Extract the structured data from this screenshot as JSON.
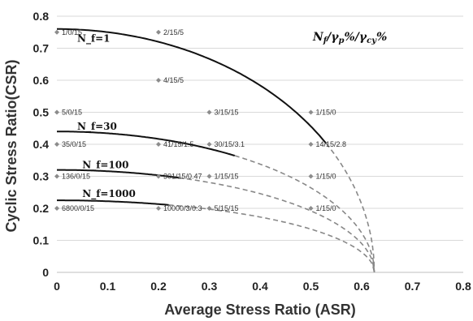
{
  "chart_data": {
    "type": "scatter",
    "title": "",
    "xlabel": "Average Stress Ratio (ASR)",
    "ylabel": "Cyclic Stress Ratio(CSR)",
    "xlim": [
      0,
      0.8
    ],
    "ylim": [
      0,
      0.8
    ],
    "x_ticks": [
      "0",
      "0.1",
      "0.2",
      "0.3",
      "0.4",
      "0.5",
      "0.6",
      "0.7",
      "0.8"
    ],
    "y_ticks": [
      "0",
      "0.1",
      "0.2",
      "0.3",
      "0.4",
      "0.5",
      "0.6",
      "0.7",
      "0.8"
    ],
    "grid": "horizontal",
    "legend_text": "N_f/γ_p%/γ_cy%",
    "points": [
      {
        "x": 0.0,
        "y": 0.75,
        "label": "1/0/15"
      },
      {
        "x": 0.2,
        "y": 0.75,
        "label": "2/15/5"
      },
      {
        "x": 0.2,
        "y": 0.6,
        "label": "4/15/5"
      },
      {
        "x": 0.0,
        "y": 0.5,
        "label": "5/0/15"
      },
      {
        "x": 0.3,
        "y": 0.5,
        "label": "3/15/15"
      },
      {
        "x": 0.5,
        "y": 0.5,
        "label": "1/15/0"
      },
      {
        "x": 0.0,
        "y": 0.4,
        "label": "35/0/15"
      },
      {
        "x": 0.2,
        "y": 0.4,
        "label": "41/15/1.5"
      },
      {
        "x": 0.3,
        "y": 0.4,
        "label": "30/15/3.1"
      },
      {
        "x": 0.5,
        "y": 0.4,
        "label": "14/15/2.8"
      },
      {
        "x": 0.0,
        "y": 0.3,
        "label": "136/0/15"
      },
      {
        "x": 0.2,
        "y": 0.3,
        "label": "301/15/0.47"
      },
      {
        "x": 0.3,
        "y": 0.3,
        "label": "1/15/15"
      },
      {
        "x": 0.5,
        "y": 0.3,
        "label": "1/15/0"
      },
      {
        "x": 0.0,
        "y": 0.2,
        "label": "6800/0/15"
      },
      {
        "x": 0.2,
        "y": 0.2,
        "label": "10000/3/0.3"
      },
      {
        "x": 0.3,
        "y": 0.2,
        "label": "5/15/15"
      },
      {
        "x": 0.5,
        "y": 0.2,
        "label": "1/15/0"
      }
    ],
    "curves": [
      {
        "name": "N_f=1",
        "y0": 0.76,
        "solid_end": 0.53,
        "label_at": [
          0.04,
          0.72
        ]
      },
      {
        "name": "N_f=30",
        "y0": 0.44,
        "solid_end": 0.35,
        "label_at": [
          0.04,
          0.445
        ]
      },
      {
        "name": "N_f=100",
        "y0": 0.32,
        "solid_end": 0.24,
        "label_at": [
          0.05,
          0.325
        ]
      },
      {
        "name": "N_f=1000",
        "y0": 0.225,
        "solid_end": 0.22,
        "label_at": [
          0.05,
          0.235
        ]
      }
    ],
    "x_intercept": 0.625
  }
}
